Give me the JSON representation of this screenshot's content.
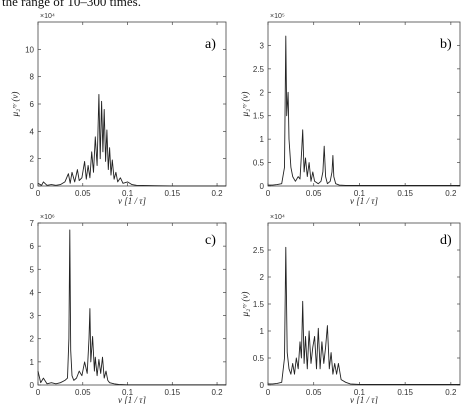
{
  "caption_fragment": "the range of 10–300 times.",
  "chart_data": [
    {
      "type": "line",
      "panel_label": "a)",
      "xlabel": "ν [1 / τ]",
      "ylabel": "μ₂ˣʸ (ν)",
      "exponent": "×10⁴",
      "xlim": [
        0,
        0.21
      ],
      "ylim": [
        0,
        12
      ],
      "xticks": [
        "0",
        "0.05",
        "0.1",
        "0.15",
        "0.2"
      ],
      "xtick_values": [
        0,
        0.05,
        0.1,
        0.15,
        0.2
      ],
      "yticks": [
        "0",
        "2",
        "4",
        "6",
        "8",
        "10"
      ],
      "ytick_values": [
        0,
        2,
        4,
        6,
        8,
        10
      ],
      "x": [
        0,
        0.004,
        0.006,
        0.01,
        0.015,
        0.02,
        0.025,
        0.03,
        0.034,
        0.036,
        0.038,
        0.041,
        0.044,
        0.046,
        0.049,
        0.052,
        0.054,
        0.056,
        0.058,
        0.06,
        0.062,
        0.064,
        0.066,
        0.068,
        0.0695,
        0.071,
        0.0725,
        0.074,
        0.0755,
        0.077,
        0.0785,
        0.08,
        0.0815,
        0.083,
        0.085,
        0.087,
        0.089,
        0.092,
        0.095,
        0.1,
        0.105,
        0.11,
        0.13,
        0.15,
        0.17,
        0.19,
        0.21
      ],
      "y": [
        0.2,
        0.05,
        0.3,
        0.05,
        0.1,
        0.05,
        0.1,
        0.3,
        0.9,
        0.2,
        1.0,
        0.3,
        1.2,
        0.4,
        0.6,
        1.8,
        0.5,
        1.5,
        0.6,
        2.5,
        1.0,
        3.6,
        1.5,
        6.7,
        2.0,
        6.2,
        2.5,
        5.6,
        1.8,
        4.1,
        1.2,
        2.8,
        0.8,
        1.9,
        0.5,
        1.0,
        0.3,
        0.6,
        0.2,
        0.3,
        0.1,
        0.05,
        0.02,
        0.01,
        0.01,
        0.01,
        0.01
      ]
    },
    {
      "type": "line",
      "panel_label": "b)",
      "xlabel": "ν [1 / τ]",
      "ylabel": "μ₂ˣʸ (ν)",
      "exponent": "×10⁵",
      "xlim": [
        0,
        0.21
      ],
      "ylim": [
        0,
        3.5
      ],
      "xticks": [
        "0",
        "0.05",
        "0.1",
        "0.15",
        "0.2"
      ],
      "xtick_values": [
        0,
        0.05,
        0.1,
        0.15,
        0.2
      ],
      "yticks": [
        "0",
        "0.5",
        "1",
        "1.5",
        "2",
        "2.5",
        "3"
      ],
      "ytick_values": [
        0,
        0.5,
        1,
        1.5,
        2,
        2.5,
        3
      ],
      "x": [
        0,
        0.005,
        0.01,
        0.015,
        0.018,
        0.0195,
        0.0205,
        0.022,
        0.023,
        0.025,
        0.027,
        0.03,
        0.033,
        0.035,
        0.037,
        0.038,
        0.0395,
        0.041,
        0.043,
        0.045,
        0.047,
        0.049,
        0.051,
        0.055,
        0.058,
        0.06,
        0.0615,
        0.063,
        0.065,
        0.068,
        0.07,
        0.071,
        0.072,
        0.074,
        0.078,
        0.085,
        0.1,
        0.13,
        0.16,
        0.19,
        0.21
      ],
      "y": [
        0.02,
        0.02,
        0.03,
        0.05,
        0.4,
        3.2,
        1.5,
        2.0,
        1.0,
        0.4,
        0.2,
        0.1,
        0.2,
        0.15,
        0.8,
        1.2,
        0.3,
        0.6,
        0.2,
        0.5,
        0.1,
        0.3,
        0.1,
        0.05,
        0.1,
        0.3,
        0.85,
        0.2,
        0.05,
        0.1,
        0.3,
        0.65,
        0.2,
        0.05,
        0.02,
        0.01,
        0.01,
        0.01,
        0.01,
        0.01,
        0.01
      ]
    },
    {
      "type": "line",
      "panel_label": "c)",
      "xlabel": "ν [1 / τ]",
      "ylabel": "",
      "exponent": "×10⁶",
      "xlim": [
        0,
        0.21
      ],
      "ylim": [
        0,
        7
      ],
      "xticks": [
        "0",
        "0.05",
        "0.1",
        "0.15",
        "0.2"
      ],
      "xtick_values": [
        0,
        0.05,
        0.1,
        0.15,
        0.2
      ],
      "yticks": [
        "0",
        "1",
        "2",
        "3",
        "4",
        "5",
        "6",
        "7"
      ],
      "ytick_values": [
        0,
        1,
        2,
        3,
        4,
        5,
        6,
        7
      ],
      "x": [
        0,
        0.003,
        0.006,
        0.01,
        0.015,
        0.02,
        0.025,
        0.03,
        0.033,
        0.0345,
        0.0355,
        0.0365,
        0.038,
        0.04,
        0.043,
        0.046,
        0.049,
        0.052,
        0.055,
        0.057,
        0.058,
        0.059,
        0.061,
        0.063,
        0.064,
        0.066,
        0.068,
        0.07,
        0.072,
        0.074,
        0.076,
        0.078,
        0.08,
        0.085,
        0.09,
        0.1,
        0.13,
        0.16,
        0.19,
        0.21
      ],
      "y": [
        0.6,
        0.1,
        0.3,
        0.05,
        0.1,
        0.05,
        0.1,
        0.2,
        0.3,
        2.0,
        6.7,
        1.5,
        0.4,
        0.2,
        0.3,
        0.6,
        0.4,
        1.0,
        0.5,
        2.0,
        3.3,
        1.0,
        2.1,
        0.6,
        1.2,
        0.4,
        1.1,
        0.5,
        1.2,
        0.3,
        0.6,
        0.2,
        0.1,
        0.05,
        0.02,
        0.01,
        0.01,
        0.01,
        0.01,
        0.01
      ]
    },
    {
      "type": "line",
      "panel_label": "d)",
      "xlabel": "ν [1 / τ]",
      "ylabel": "μ₂ˣʸ (ν)",
      "exponent": "×10⁴",
      "xlim": [
        0,
        0.21
      ],
      "ylim": [
        0,
        3
      ],
      "xticks": [
        "0",
        "0.05",
        "0.1",
        "0.15",
        "0.2"
      ],
      "xtick_values": [
        0,
        0.05,
        0.1,
        0.15,
        0.2
      ],
      "yticks": [
        "0",
        "0.5",
        "1",
        "1.5",
        "2",
        "2.5"
      ],
      "ytick_values": [
        0,
        0.5,
        1,
        1.5,
        2,
        2.5
      ],
      "x": [
        0,
        0.005,
        0.01,
        0.015,
        0.018,
        0.0195,
        0.021,
        0.023,
        0.025,
        0.027,
        0.029,
        0.031,
        0.033,
        0.035,
        0.0365,
        0.038,
        0.0395,
        0.041,
        0.043,
        0.045,
        0.047,
        0.049,
        0.051,
        0.053,
        0.055,
        0.057,
        0.059,
        0.061,
        0.063,
        0.065,
        0.067,
        0.069,
        0.071,
        0.073,
        0.075,
        0.077,
        0.08,
        0.085,
        0.09,
        0.1,
        0.13,
        0.16,
        0.19,
        0.21
      ],
      "y": [
        0.02,
        0.02,
        0.03,
        0.05,
        0.5,
        2.55,
        0.6,
        0.3,
        0.2,
        0.4,
        0.2,
        0.5,
        0.3,
        0.8,
        0.5,
        1.55,
        0.4,
        0.9,
        0.3,
        1.0,
        0.4,
        0.7,
        0.9,
        0.3,
        1.05,
        0.3,
        0.8,
        0.4,
        0.7,
        1.1,
        0.3,
        0.6,
        0.2,
        0.4,
        0.2,
        0.4,
        0.1,
        0.05,
        0.02,
        0.01,
        0.01,
        0.01,
        0.01,
        0.01
      ]
    }
  ]
}
